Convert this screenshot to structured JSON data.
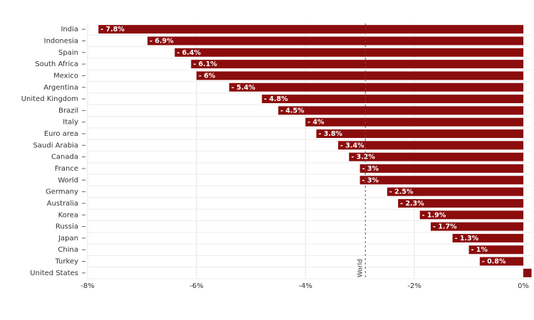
{
  "chart_data": {
    "type": "barh",
    "categories": [
      "India",
      "Indonesia",
      "Spain",
      "South Africa",
      "Mexico",
      "Argentina",
      "United Kingdom",
      "Brazil",
      "Italy",
      "Euro area",
      "Saudi Arabia",
      "Canada",
      "France",
      "World",
      "Germany",
      "Australia",
      "Korea",
      "Russia",
      "Japan",
      "China",
      "Turkey",
      "United States"
    ],
    "values": [
      -7.8,
      -6.9,
      -6.4,
      -6.1,
      -6,
      -5.4,
      -4.8,
      -4.5,
      -4,
      -3.8,
      -3.4,
      -3.2,
      -3,
      -3,
      -2.5,
      -2.3,
      -1.9,
      -1.7,
      -1.3,
      -1,
      -0.8,
      0.15
    ],
    "value_labels": [
      "- 7.8%",
      "- 6.9%",
      "- 6.4%",
      "- 6.1%",
      "- 6%",
      "- 5.4%",
      "- 4.8%",
      "- 4.5%",
      "- 4%",
      "- 3.8%",
      "- 3.4%",
      "- 3.2%",
      "- 3%",
      "- 3%",
      "- 2.5%",
      "- 2.3%",
      "- 1.9%",
      "- 1.7%",
      "- 1.3%",
      "- 1%",
      "- 0.8%",
      null
    ],
    "color": "#8b0c0c",
    "xlim": [
      -8,
      0.15
    ],
    "xticks": [
      {
        "value": -8,
        "label": "-8%"
      },
      {
        "value": -6,
        "label": "-6%"
      },
      {
        "value": -4,
        "label": "-4%"
      },
      {
        "value": -2,
        "label": "-2%"
      },
      {
        "value": 0,
        "label": "0%"
      }
    ],
    "annotations": [
      {
        "text": "World",
        "value": -2.9
      }
    ],
    "grid": true
  }
}
